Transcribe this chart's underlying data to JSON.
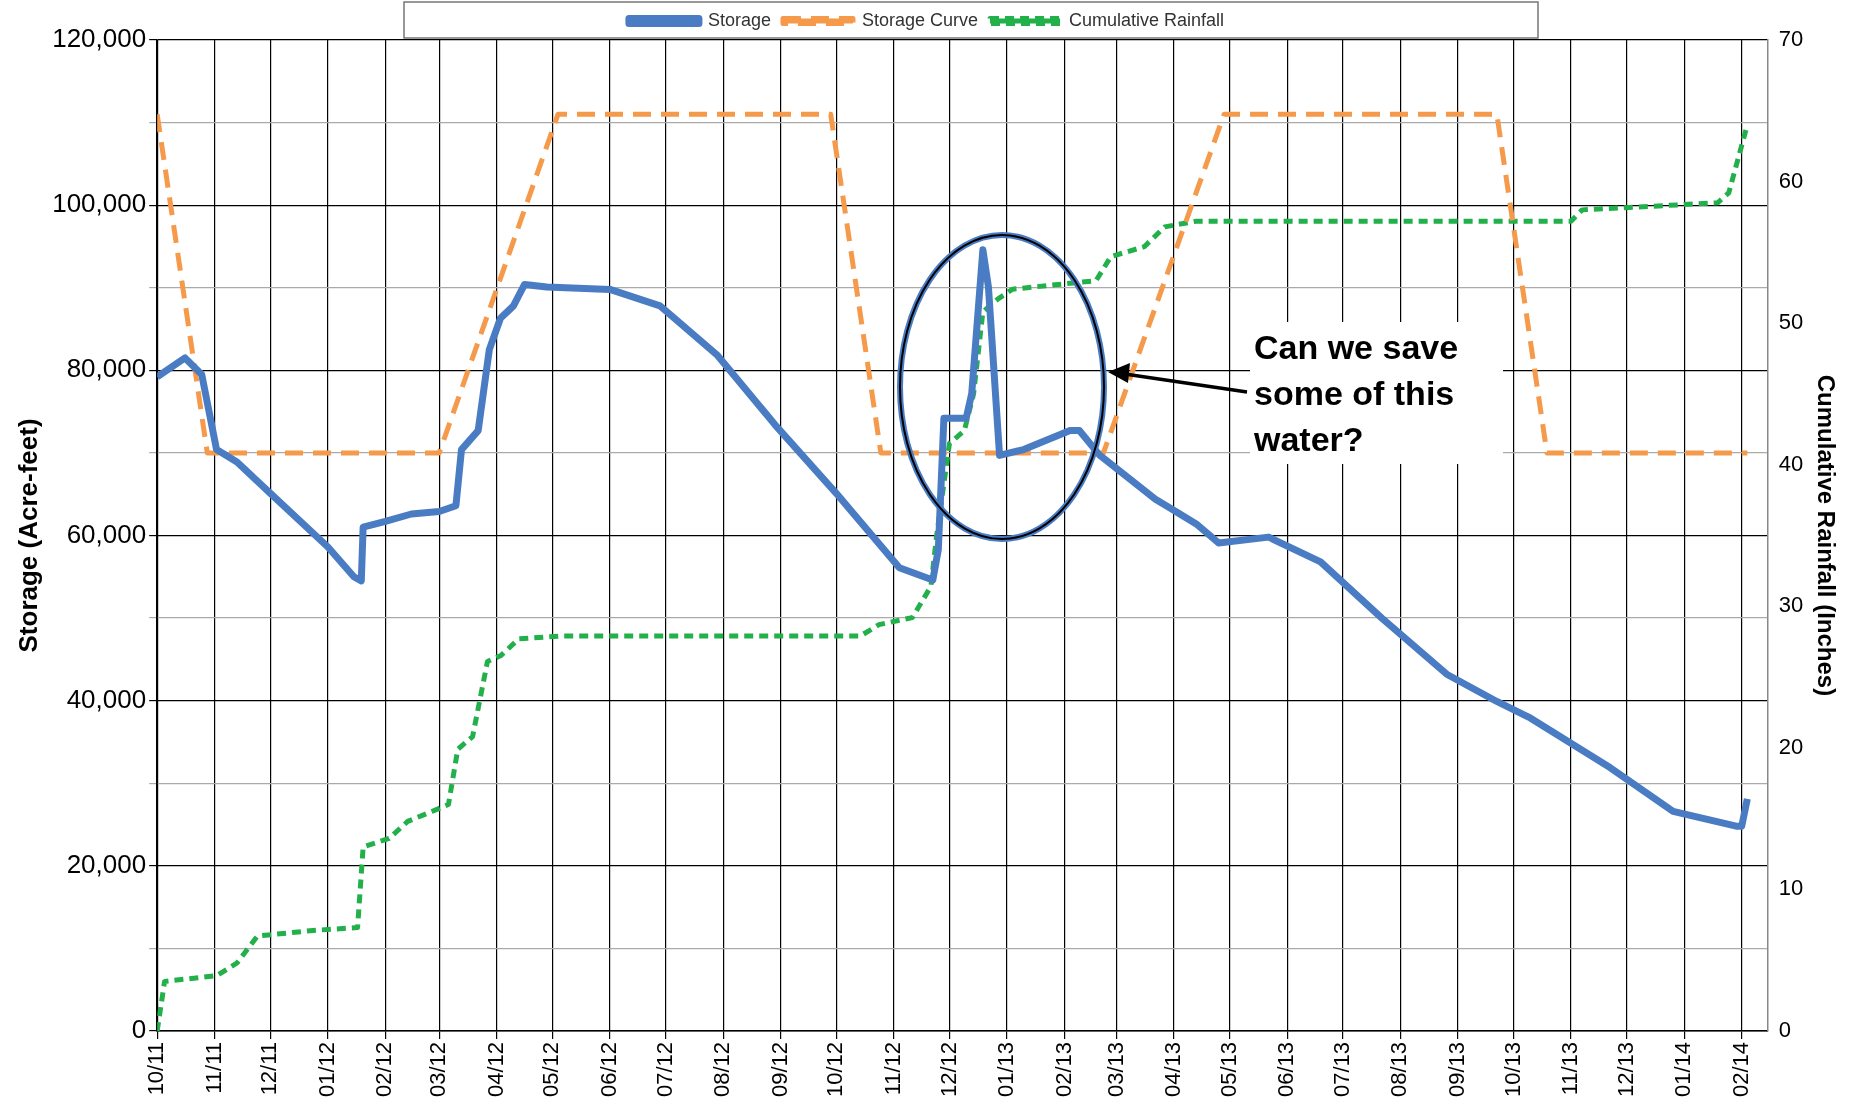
{
  "chart_data": {
    "type": "line",
    "xlabel": null,
    "ylabel": "Storage (Acre-feet)",
    "y2label": "Cumulative Rainfall (Inches)",
    "xlim": [
      "2011-10-01",
      "2014-02-15"
    ],
    "xticks": [
      {
        "value": "2011-10",
        "label": "10/11"
      },
      {
        "value": "2011-11",
        "label": "11/11"
      },
      {
        "value": "2011-12",
        "label": "12/11"
      },
      {
        "value": "2012-01",
        "label": "01/12"
      },
      {
        "value": "2012-02",
        "label": "02/12"
      },
      {
        "value": "2012-03",
        "label": "03/12"
      },
      {
        "value": "2012-04",
        "label": "04/12"
      },
      {
        "value": "2012-05",
        "label": "05/12"
      },
      {
        "value": "2012-06",
        "label": "06/12"
      },
      {
        "value": "2012-07",
        "label": "07/12"
      },
      {
        "value": "2012-08",
        "label": "08/12"
      },
      {
        "value": "2012-09",
        "label": "09/12"
      },
      {
        "value": "2012-10",
        "label": "10/12"
      },
      {
        "value": "2012-11",
        "label": "11/12"
      },
      {
        "value": "2012-12",
        "label": "12/12"
      },
      {
        "value": "2013-01",
        "label": "01/13"
      },
      {
        "value": "2013-02",
        "label": "02/13"
      },
      {
        "value": "2013-03",
        "label": "03/13"
      },
      {
        "value": "2013-04",
        "label": "04/13"
      },
      {
        "value": "2013-05",
        "label": "05/13"
      },
      {
        "value": "2013-06",
        "label": "06/13"
      },
      {
        "value": "2013-07",
        "label": "07/13"
      },
      {
        "value": "2013-08",
        "label": "08/13"
      },
      {
        "value": "2013-09",
        "label": "09/13"
      },
      {
        "value": "2013-10",
        "label": "10/13"
      },
      {
        "value": "2013-11",
        "label": "11/13"
      },
      {
        "value": "2013-12",
        "label": "12/13"
      },
      {
        "value": "2014-01",
        "label": "01/14"
      },
      {
        "value": "2014-02",
        "label": "02/14"
      }
    ],
    "ylim": [
      0,
      120000
    ],
    "yticks": [
      {
        "value": 0,
        "label": "0"
      },
      {
        "value": 10000,
        "label": null
      },
      {
        "value": 20000,
        "label": "20,000"
      },
      {
        "value": 30000,
        "label": null
      },
      {
        "value": 40000,
        "label": "40,000"
      },
      {
        "value": 50000,
        "label": null
      },
      {
        "value": 60000,
        "label": "60,000"
      },
      {
        "value": 70000,
        "label": null
      },
      {
        "value": 80000,
        "label": "80,000"
      },
      {
        "value": 90000,
        "label": null
      },
      {
        "value": 100000,
        "label": "100,000"
      },
      {
        "value": 110000,
        "label": null
      },
      {
        "value": 120000,
        "label": "120,000"
      }
    ],
    "y2lim": [
      0,
      70
    ],
    "y2ticks": [
      0,
      10,
      20,
      30,
      40,
      50,
      60,
      70
    ],
    "grid": true,
    "legend": "top",
    "marker": "none",
    "annotations": [
      "Can we save some of this water?"
    ],
    "series": [
      {
        "name": "Storage",
        "color": "#4a7cc4",
        "line_style": "solid",
        "x": [
          "2011-10-01",
          "2011-10-16",
          "2011-10-25",
          "2011-11-02",
          "2011-11-13",
          "2011-12-01",
          "2012-01-01",
          "2012-01-15",
          "2012-01-19",
          "2012-01-20",
          "2012-02-01",
          "2012-02-15",
          "2012-03-01",
          "2012-03-10",
          "2012-03-13",
          "2012-03-22",
          "2012-03-28",
          "2012-04-03",
          "2012-04-10",
          "2012-04-16",
          "2012-04-28",
          "2012-06-01",
          "2012-06-28",
          "2012-07-29",
          "2012-08-29",
          "2012-10-01",
          "2012-11-04",
          "2012-11-22",
          "2012-11-25",
          "2012-11-28",
          "2012-12-10",
          "2012-12-13",
          "2012-12-19",
          "2012-12-22",
          "2012-12-28",
          "2013-01-10",
          "2013-02-04",
          "2013-02-09",
          "2013-02-20",
          "2013-03-22",
          "2013-04-13",
          "2013-04-25",
          "2013-05-22",
          "2013-06-19",
          "2013-07-22",
          "2013-08-26",
          "2013-09-22",
          "2013-10-10",
          "2013-11-22",
          "2013-12-26",
          "2014-01-29",
          "2014-02-01",
          "2014-02-04"
        ],
        "values": [
          79200,
          81500,
          79500,
          70400,
          68900,
          65100,
          58600,
          55000,
          54500,
          61000,
          61700,
          62600,
          62900,
          63600,
          70400,
          72700,
          82500,
          86300,
          87800,
          90400,
          90100,
          89800,
          87800,
          81800,
          73400,
          65100,
          56100,
          54600,
          58300,
          74200,
          74200,
          77200,
          94600,
          90100,
          69700,
          70400,
          72700,
          72700,
          69700,
          64400,
          61400,
          59100,
          59800,
          56800,
          50000,
          43200,
          39900,
          37900,
          31900,
          26600,
          24800,
          24800,
          28100
        ]
      },
      {
        "name": "Storage Curve",
        "color": "#f5994a",
        "line_style": "dashed",
        "x": [
          "2011-10-01",
          "2011-10-28",
          "2012-03-01",
          "2012-05-04",
          "2012-09-28",
          "2012-10-25",
          "2013-02-22",
          "2013-04-28",
          "2013-09-22",
          "2013-10-19",
          "2014-02-04"
        ],
        "values": [
          111000,
          70000,
          70000,
          111000,
          111000,
          70000,
          70000,
          111000,
          111000,
          70000,
          70000
        ]
      },
      {
        "name": "Cumulative Rainfall",
        "color": "#22b04b",
        "line_style": "dotted",
        "axis": "y2",
        "x": [
          "2011-10-01",
          "2011-10-05",
          "2011-11-02",
          "2011-11-13",
          "2011-11-24",
          "2011-12-24",
          "2012-01-17",
          "2012-01-20",
          "2012-02-03",
          "2012-02-13",
          "2012-02-26",
          "2012-03-06",
          "2012-03-11",
          "2012-03-19",
          "2012-03-27",
          "2012-04-03",
          "2012-04-13",
          "2012-05-06",
          "2012-10-14",
          "2012-10-24",
          "2012-11-11",
          "2012-11-21",
          "2012-11-24",
          "2012-12-01",
          "2012-12-09",
          "2012-12-14",
          "2012-12-19",
          "2012-12-27",
          "2013-01-04",
          "2013-02-18",
          "2013-02-26",
          "2013-03-16",
          "2013-03-27",
          "2013-04-13",
          "2013-11-01",
          "2013-11-07",
          "2014-01-19",
          "2014-01-25",
          "2014-02-04"
        ],
        "values": [
          0,
          3.5,
          3.9,
          4.8,
          6.7,
          7.1,
          7.3,
          13.0,
          13.6,
          14.8,
          15.5,
          16.0,
          19.9,
          20.8,
          26.1,
          26.5,
          27.7,
          27.9,
          27.9,
          28.7,
          29.2,
          31.4,
          34.9,
          41.5,
          42.4,
          45.0,
          50.8,
          51.7,
          52.4,
          53.0,
          54.7,
          55.4,
          56.8,
          57.2,
          57.2,
          58.0,
          58.5,
          59.2,
          64.0
        ]
      }
    ]
  }
}
